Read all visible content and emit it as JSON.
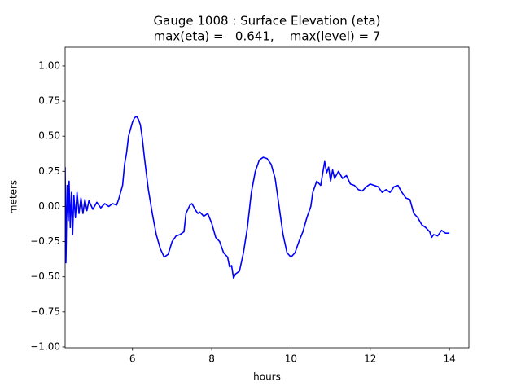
{
  "chart_data": {
    "type": "line",
    "title": "Gauge 1008 : Surface Elevation (eta)",
    "subtitle": "max(eta) =   0.641,    max(level) = 7",
    "xlabel": "hours",
    "ylabel": "meters",
    "color": "#0000ff",
    "x": [
      4.3,
      4.32,
      4.35,
      4.38,
      4.4,
      4.43,
      4.46,
      4.49,
      4.52,
      4.56,
      4.6,
      4.65,
      4.7,
      4.75,
      4.8,
      4.85,
      4.9,
      5.0,
      5.1,
      5.2,
      5.3,
      5.4,
      5.5,
      5.6,
      5.65,
      5.75,
      5.8,
      5.85,
      5.9,
      5.95,
      6.0,
      6.05,
      6.1,
      6.15,
      6.2,
      6.25,
      6.3,
      6.4,
      6.5,
      6.6,
      6.7,
      6.8,
      6.9,
      7.0,
      7.1,
      7.2,
      7.3,
      7.35,
      7.45,
      7.5,
      7.6,
      7.65,
      7.7,
      7.8,
      7.9,
      8.0,
      8.1,
      8.2,
      8.3,
      8.4,
      8.45,
      8.5,
      8.55,
      8.6,
      8.7,
      8.8,
      8.9,
      9.0,
      9.1,
      9.2,
      9.3,
      9.4,
      9.5,
      9.6,
      9.7,
      9.8,
      9.9,
      10.0,
      10.1,
      10.2,
      10.3,
      10.4,
      10.5,
      10.55,
      10.65,
      10.75,
      10.85,
      10.9,
      10.95,
      11.0,
      11.05,
      11.1,
      11.2,
      11.3,
      11.4,
      11.5,
      11.6,
      11.7,
      11.8,
      11.9,
      12.0,
      12.1,
      12.2,
      12.3,
      12.4,
      12.5,
      12.6,
      12.7,
      12.8,
      12.9,
      13.0,
      13.1,
      13.2,
      13.3,
      13.4,
      13.5,
      13.55,
      13.6,
      13.7,
      13.8,
      13.9,
      14.0
    ],
    "values": [
      0.28,
      -0.4,
      0.15,
      -0.1,
      0.18,
      -0.15,
      0.1,
      -0.2,
      0.08,
      -0.08,
      0.1,
      -0.05,
      0.06,
      -0.05,
      0.05,
      -0.03,
      0.04,
      -0.02,
      0.03,
      -0.01,
      0.02,
      0.0,
      0.02,
      0.01,
      0.05,
      0.15,
      0.3,
      0.38,
      0.5,
      0.55,
      0.6,
      0.63,
      0.641,
      0.62,
      0.58,
      0.48,
      0.35,
      0.12,
      -0.05,
      -0.2,
      -0.3,
      -0.36,
      -0.34,
      -0.25,
      -0.21,
      -0.2,
      -0.18,
      -0.05,
      0.01,
      0.02,
      -0.03,
      -0.05,
      -0.04,
      -0.07,
      -0.05,
      -0.12,
      -0.22,
      -0.25,
      -0.33,
      -0.36,
      -0.43,
      -0.42,
      -0.51,
      -0.48,
      -0.46,
      -0.33,
      -0.15,
      0.1,
      0.25,
      0.33,
      0.35,
      0.34,
      0.3,
      0.2,
      0.0,
      -0.2,
      -0.33,
      -0.36,
      -0.33,
      -0.25,
      -0.18,
      -0.08,
      0.0,
      0.1,
      0.18,
      0.15,
      0.32,
      0.24,
      0.28,
      0.18,
      0.26,
      0.2,
      0.25,
      0.2,
      0.22,
      0.16,
      0.15,
      0.12,
      0.11,
      0.14,
      0.16,
      0.15,
      0.14,
      0.1,
      0.12,
      0.1,
      0.14,
      0.15,
      0.1,
      0.06,
      0.05,
      -0.05,
      -0.08,
      -0.13,
      -0.15,
      -0.18,
      -0.22,
      -0.2,
      -0.21,
      -0.17,
      -0.19,
      -0.19
    ],
    "xlim": [
      4.3,
      14.49
    ],
    "xticks": [
      6,
      8,
      10,
      12,
      14
    ],
    "ylim": [
      -1.006,
      1.133
    ],
    "yticks": [
      {
        "value": -1,
        "label": "−1.00"
      },
      {
        "value": -0.75,
        "label": "−0.75"
      },
      {
        "value": -0.5,
        "label": "−0.50"
      },
      {
        "value": -0.25,
        "label": "−0.25"
      },
      {
        "value": 0,
        "label": "0.00"
      },
      0.25,
      {
        "value": 0.5,
        "label": "0.50"
      },
      0.75,
      {
        "value": 1,
        "label": "1.00"
      }
    ],
    "grid": false
  }
}
